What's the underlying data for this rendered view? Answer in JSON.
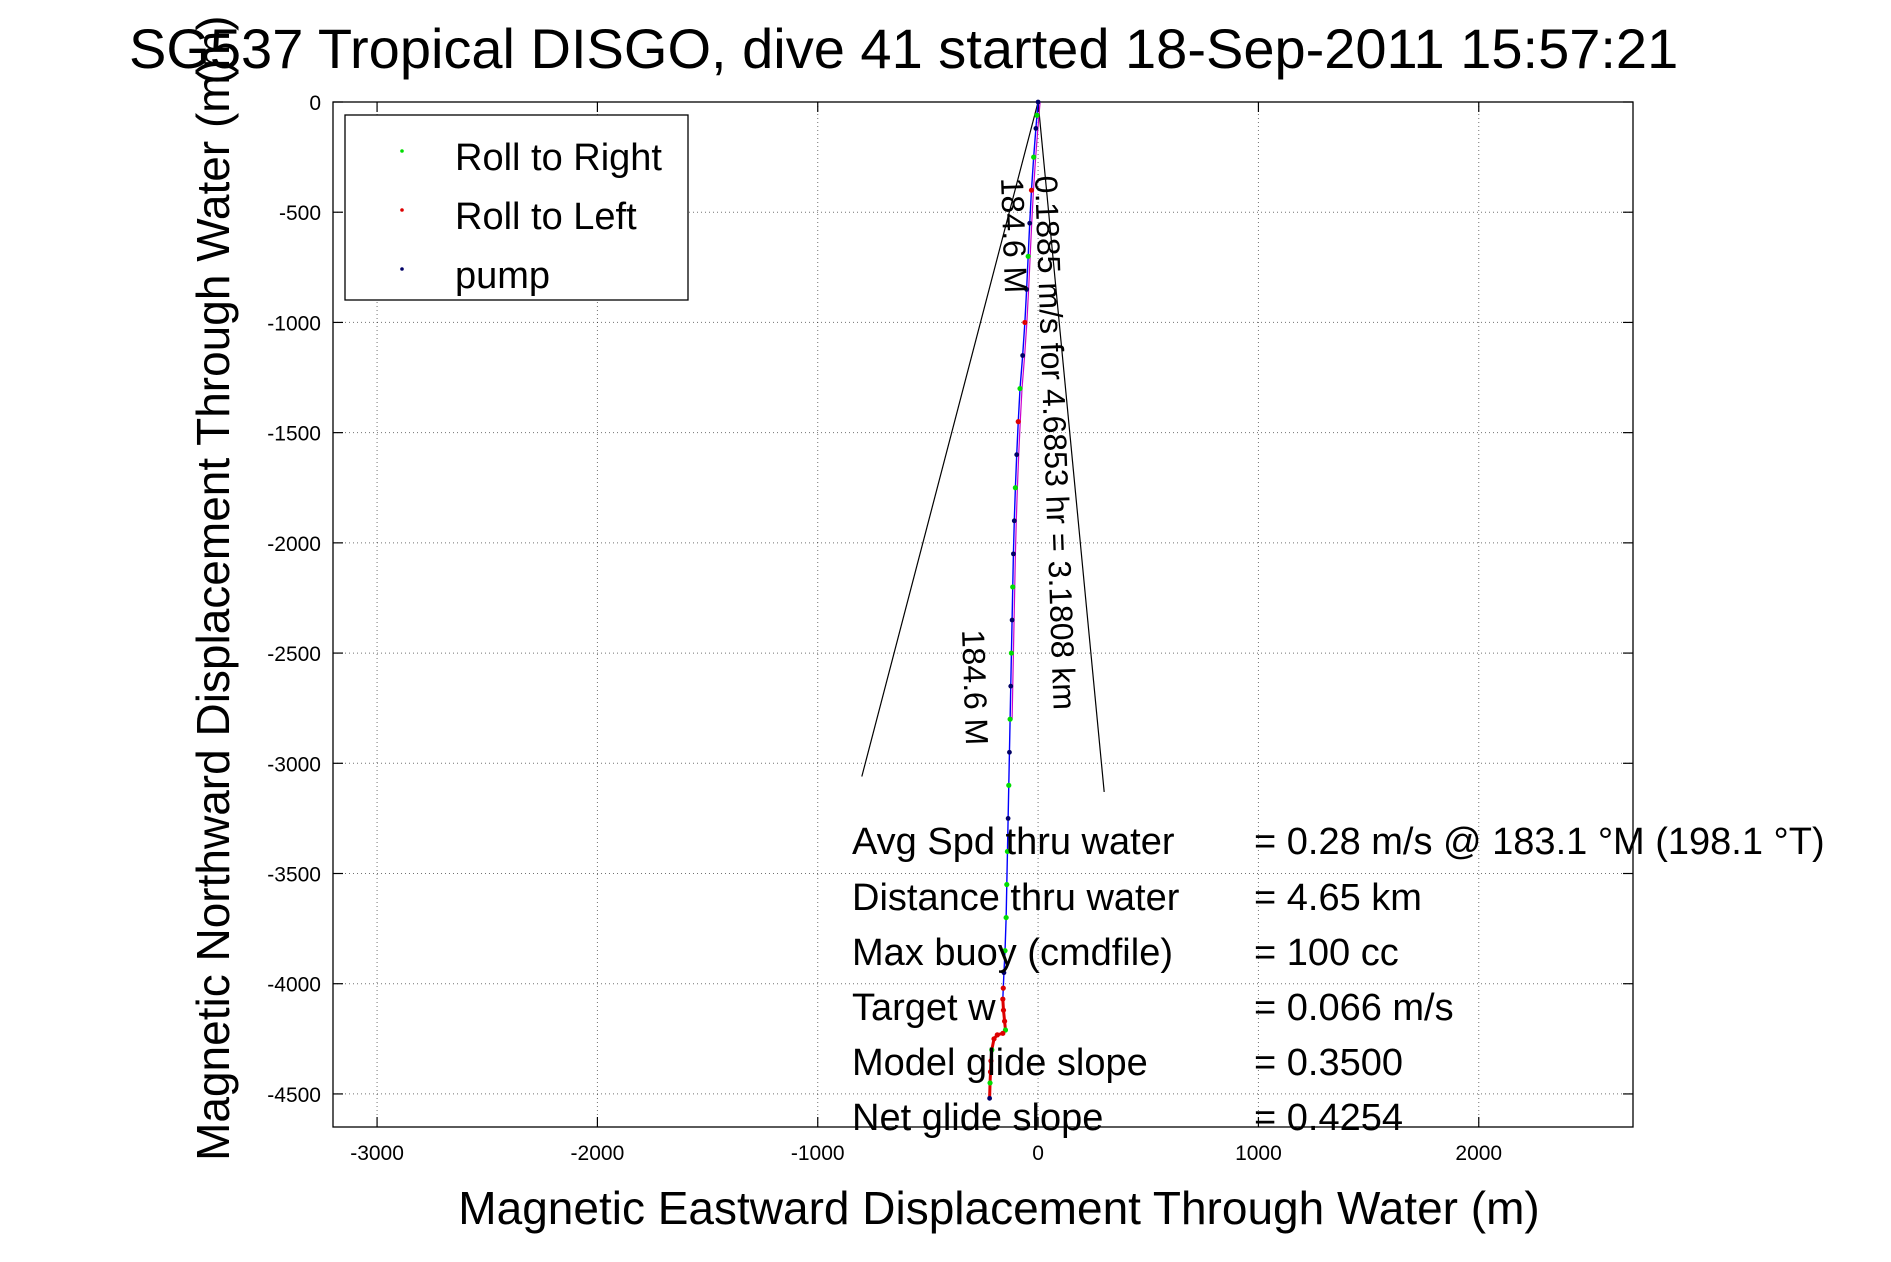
{
  "chart_data": {
    "type": "line",
    "title": "SG537 Tropical DISGO, dive 41 started 18-Sep-2011 15:57:21",
    "title_overlap_text": "(m)",
    "xlabel": "Magnetic Eastward Displacement Through Water (m)",
    "ylabel": "Magnetic Northward Displacement Through Water (m)",
    "xlim": [
      -3200,
      2700
    ],
    "ylim": [
      -4650,
      0
    ],
    "xticks": [
      -3000,
      -2000,
      -1000,
      0,
      1000,
      2000
    ],
    "yticks": [
      0,
      -500,
      -1000,
      -1500,
      -2000,
      -2500,
      -3000,
      -3500,
      -4000,
      -4500
    ],
    "xtick_labels": [
      "-3000",
      "-2000",
      "-1000",
      "0",
      "1000",
      "2000"
    ],
    "ytick_labels": [
      "0",
      "-500",
      "-1000",
      "-1500",
      "-2000",
      "-2500",
      "-3000",
      "-3500",
      "-4000",
      "-4500"
    ],
    "grid": true,
    "legend_placement": "top-left",
    "legend": [
      {
        "label": "Roll to Right",
        "color": "#00dd00"
      },
      {
        "label": "Roll to Left",
        "color": "#dd0000"
      },
      {
        "label": "pump",
        "color": "#000066"
      }
    ],
    "track_color": "#0000ff",
    "track": {
      "x": [
        0,
        -5,
        -10,
        -20,
        -30,
        -38,
        -45,
        -52,
        -60,
        -70,
        -82,
        -90,
        -97,
        -103,
        -108,
        -112,
        -115,
        -118,
        -121,
        -124,
        -127,
        -130,
        -133,
        -136,
        -139,
        -142,
        -145,
        -150,
        -155,
        -158,
        -160,
        -157,
        -152,
        -148,
        -160,
        -185,
        -200,
        -210,
        -214,
        -216,
        -218,
        -220
      ],
      "y": [
        0,
        -60,
        -120,
        -250,
        -400,
        -550,
        -700,
        -850,
        -1000,
        -1150,
        -1300,
        -1450,
        -1600,
        -1750,
        -1900,
        -2050,
        -2200,
        -2350,
        -2500,
        -2650,
        -2800,
        -2950,
        -3100,
        -3250,
        -3400,
        -3550,
        -3700,
        -3850,
        -3950,
        -4020,
        -4070,
        -4120,
        -4170,
        -4210,
        -4225,
        -4232,
        -4250,
        -4300,
        -4350,
        -4400,
        -4450,
        -4520
      ]
    },
    "roll_right_indices": [
      1,
      3,
      6,
      10,
      13,
      16,
      18,
      20,
      22,
      24,
      25,
      26,
      27,
      33,
      37,
      40
    ],
    "roll_left_indices": [
      4,
      8,
      11,
      29,
      30,
      31,
      32,
      34,
      35,
      36,
      38,
      39
    ],
    "pump_indices": [
      0,
      2,
      5,
      7,
      9,
      12,
      14,
      15,
      17,
      19,
      21,
      23,
      28,
      41
    ],
    "annotations": [
      {
        "text": "0.1885 m/s for 4.6853 hr = 3.1808 km",
        "angle_deg": 88
      },
      {
        "text": "184.6 M",
        "angle_deg": 88
      },
      {
        "text": "184.6 M",
        "angle_deg": 88
      }
    ],
    "wedge_lines": [
      {
        "x": [
          0,
          -800
        ],
        "y": [
          0,
          -3060
        ]
      },
      {
        "x": [
          0,
          300
        ],
        "y": [
          0,
          -3130
        ]
      }
    ],
    "stats": [
      {
        "label": "Avg Spd thru water",
        "value": "=  0.28 m/s @ 183.1 °M (198.1 °T)"
      },
      {
        "label": "Distance thru water",
        "value": "=  4.65 km"
      },
      {
        "label": "Max buoy (cmdfile)",
        "value": "= 100 cc"
      },
      {
        "label": "Target w",
        "value": "= 0.066 m/s"
      },
      {
        "label": "Model glide slope",
        "value": "= 0.3500"
      },
      {
        "label": "Net glide slope",
        "value": "= 0.4254"
      }
    ]
  }
}
